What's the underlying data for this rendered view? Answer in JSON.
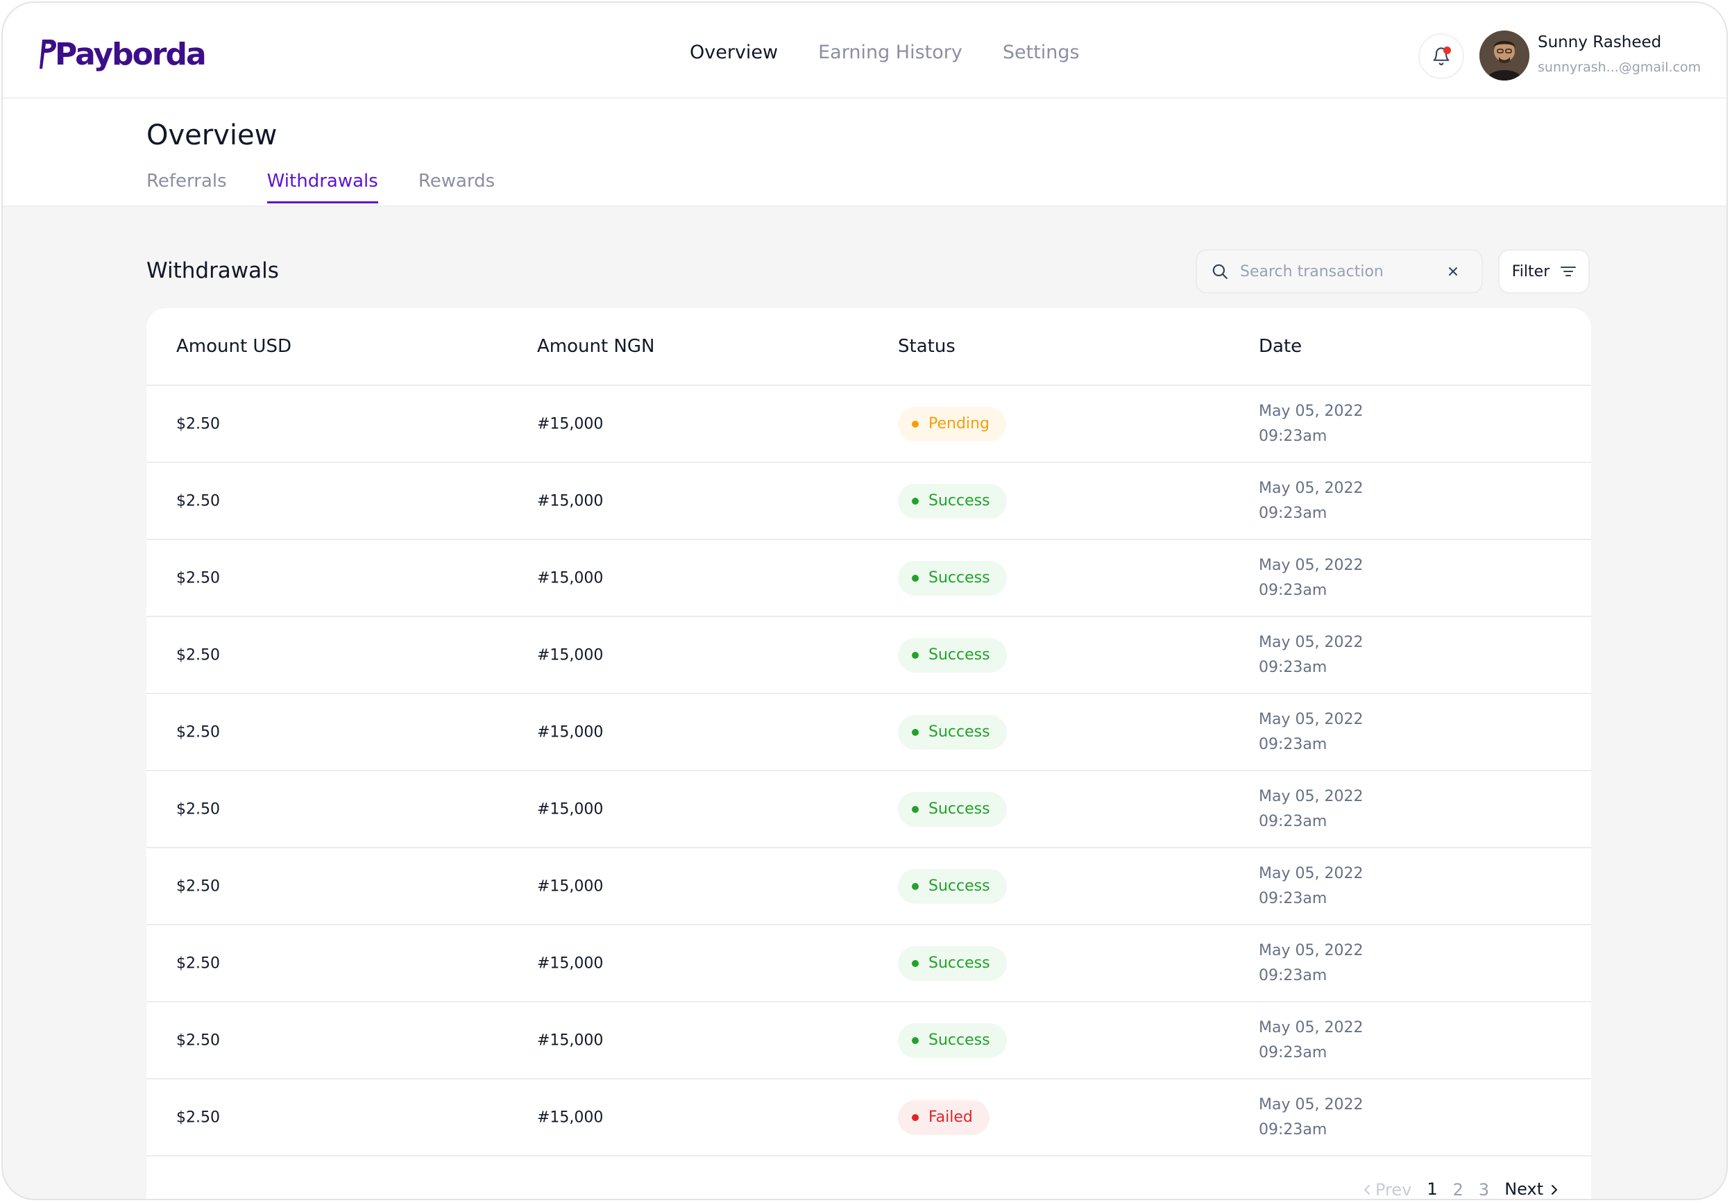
{
  "brand": {
    "name": "Payborda",
    "color": "#3d0e8a"
  },
  "nav": {
    "items": [
      {
        "label": "Overview",
        "active": true
      },
      {
        "label": "Earning History",
        "active": false
      },
      {
        "label": "Settings",
        "active": false
      }
    ]
  },
  "user": {
    "name": "Sunny Rasheed",
    "email": "sunnyrash...@gmail.com",
    "has_notification": true
  },
  "page": {
    "title": "Overview",
    "tabs": [
      {
        "label": "Referrals",
        "active": false
      },
      {
        "label": "Withdrawals",
        "active": true
      },
      {
        "label": "Rewards",
        "active": false
      }
    ],
    "accent": "#5b12d8"
  },
  "withdrawals": {
    "title": "Withdrawals",
    "search_placeholder": "Search transaction",
    "search_value": "",
    "filter_label": "Filter",
    "columns": [
      "Amount USD",
      "Amount NGN",
      "Status",
      "Date"
    ],
    "rows": [
      {
        "usd": "$2.50",
        "ngn": "#15,000",
        "status": "Pending",
        "status_type": "pending",
        "date": "May 05, 2022",
        "time": "09:23am"
      },
      {
        "usd": "$2.50",
        "ngn": "#15,000",
        "status": "Success",
        "status_type": "success",
        "date": "May 05, 2022",
        "time": "09:23am"
      },
      {
        "usd": "$2.50",
        "ngn": "#15,000",
        "status": "Success",
        "status_type": "success",
        "date": "May 05, 2022",
        "time": "09:23am"
      },
      {
        "usd": "$2.50",
        "ngn": "#15,000",
        "status": "Success",
        "status_type": "success",
        "date": "May 05, 2022",
        "time": "09:23am"
      },
      {
        "usd": "$2.50",
        "ngn": "#15,000",
        "status": "Success",
        "status_type": "success",
        "date": "May 05, 2022",
        "time": "09:23am"
      },
      {
        "usd": "$2.50",
        "ngn": "#15,000",
        "status": "Success",
        "status_type": "success",
        "date": "May 05, 2022",
        "time": "09:23am"
      },
      {
        "usd": "$2.50",
        "ngn": "#15,000",
        "status": "Success",
        "status_type": "success",
        "date": "May 05, 2022",
        "time": "09:23am"
      },
      {
        "usd": "$2.50",
        "ngn": "#15,000",
        "status": "Success",
        "status_type": "success",
        "date": "May 05, 2022",
        "time": "09:23am"
      },
      {
        "usd": "$2.50",
        "ngn": "#15,000",
        "status": "Success",
        "status_type": "success",
        "date": "May 05, 2022",
        "time": "09:23am"
      },
      {
        "usd": "$2.50",
        "ngn": "#15,000",
        "status": "Failed",
        "status_type": "failed",
        "date": "May 05, 2022",
        "time": "09:23am"
      }
    ],
    "status_colors": {
      "pending": "#f59e0b",
      "success": "#22a22a",
      "failed": "#e02424"
    }
  },
  "pagination": {
    "prev_label": "Prev",
    "next_label": "Next",
    "pages": [
      "1",
      "2",
      "3"
    ],
    "current": "1"
  },
  "icons": {
    "bell": "bell-icon",
    "search": "search-icon",
    "clear": "close-icon",
    "filter": "filter-icon",
    "prev": "chevron-left-icon",
    "next": "chevron-right-icon"
  }
}
